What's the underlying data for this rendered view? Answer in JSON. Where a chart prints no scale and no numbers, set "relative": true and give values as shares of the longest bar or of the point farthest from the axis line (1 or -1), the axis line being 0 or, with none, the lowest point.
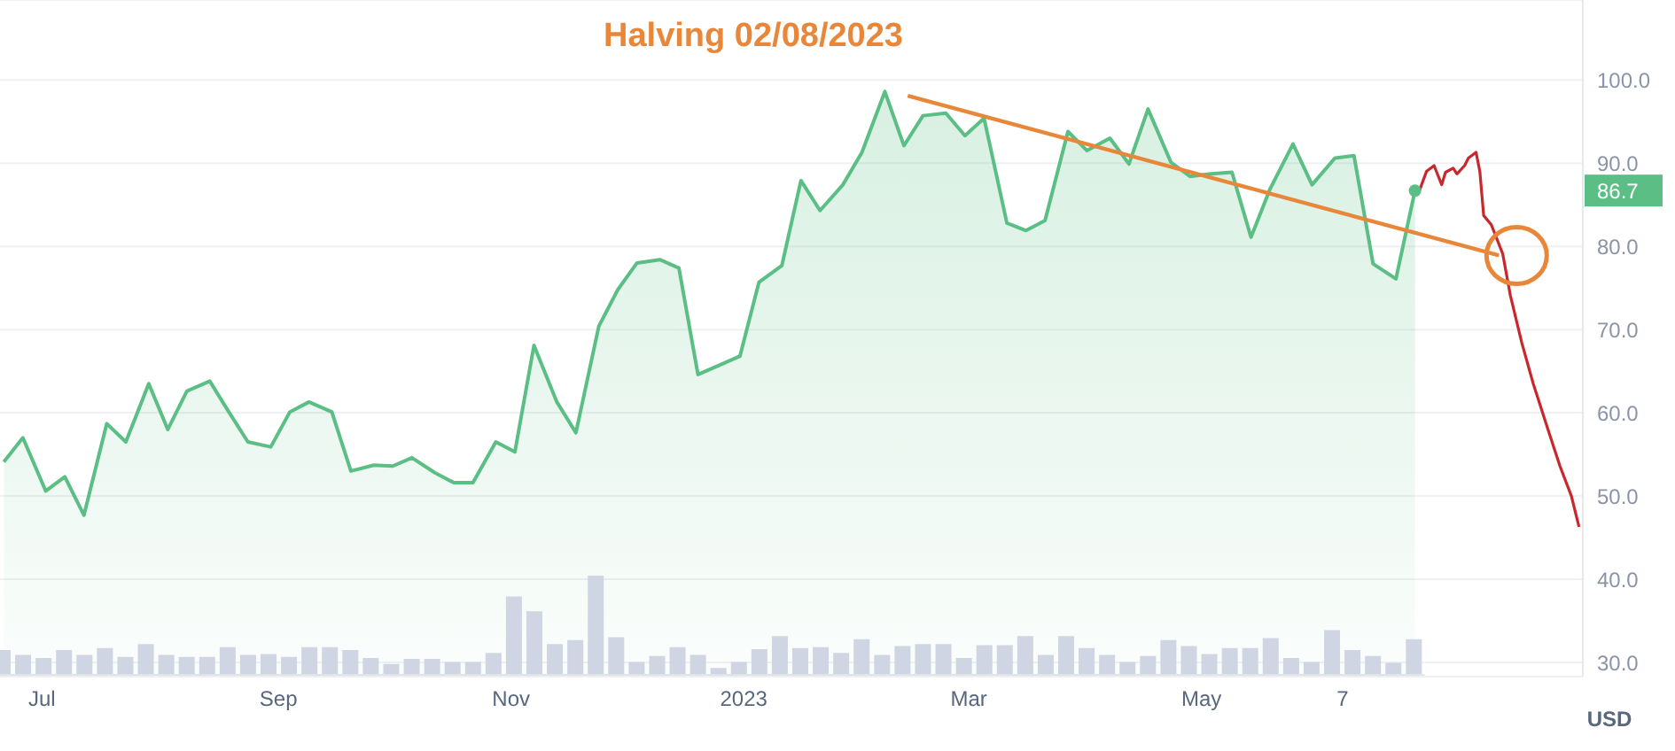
{
  "chart_data": [
    {
      "type": "area",
      "title": "Halving 02/08/2023",
      "ylabel": "USD",
      "annotations": [
        "86.7"
      ],
      "xlim": [
        "2022-06-20",
        "2023-08-09"
      ],
      "xticks": [
        {
          "value": "2022-07-01",
          "label": "Jul"
        },
        {
          "value": "2022-09-01",
          "label": "Sep"
        },
        {
          "value": "2022-11-01",
          "label": "Nov"
        },
        {
          "value": "2023-01-01",
          "label": "2023"
        },
        {
          "value": "2023-03-01",
          "label": "Mar"
        },
        {
          "value": "2023-05-01",
          "label": "May"
        },
        {
          "value": "2023-06-07",
          "label": "7"
        }
      ],
      "ylim": [
        28.3,
        109.6
      ],
      "yticks": [
        {
          "value": 30,
          "label": "30.0"
        },
        {
          "value": 40,
          "label": "40.0"
        },
        {
          "value": 50,
          "label": "50.0"
        },
        {
          "value": 60,
          "label": "60.0"
        },
        {
          "value": 70,
          "label": "70.0"
        },
        {
          "value": 80,
          "label": "80.0"
        },
        {
          "value": 90,
          "label": "90.0"
        },
        {
          "value": 100,
          "label": "100.0"
        }
      ],
      "grid": "y",
      "marker": "none",
      "line_style": "solid",
      "series": [
        {
          "type": "area",
          "color": "#5bbf85",
          "x": [
            "2022-06-21",
            "2022-06-26",
            "2022-07-02",
            "2022-07-07",
            "2022-07-12",
            "2022-07-18",
            "2022-07-23",
            "2022-07-29",
            "2022-08-03",
            "2022-08-08",
            "2022-08-14",
            "2022-08-19",
            "2022-08-24",
            "2022-08-30",
            "2022-09-04",
            "2022-09-09",
            "2022-09-15",
            "2022-09-20",
            "2022-09-26",
            "2022-10-01",
            "2022-10-06",
            "2022-10-12",
            "2022-10-17",
            "2022-10-22",
            "2022-10-28",
            "2022-11-02",
            "2022-11-07",
            "2022-11-13",
            "2022-11-18",
            "2022-11-24",
            "2022-11-29",
            "2022-12-04",
            "2022-12-10",
            "2022-12-15",
            "2022-12-20",
            "2022-12-26",
            "2022-12-31",
            "2023-01-05",
            "2023-01-11",
            "2023-01-16",
            "2023-01-21",
            "2023-01-27",
            "2023-02-01",
            "2023-02-07",
            "2023-02-12",
            "2023-02-17",
            "2023-02-23",
            "2023-02-28",
            "2023-03-05",
            "2023-03-11",
            "2023-03-16",
            "2023-03-21",
            "2023-03-27",
            "2023-04-01",
            "2023-04-07",
            "2023-04-12",
            "2023-04-17",
            "2023-04-23",
            "2023-04-28",
            "2023-05-03",
            "2023-05-09",
            "2023-05-14",
            "2023-05-19",
            "2023-05-25",
            "2023-05-30",
            "2023-06-05",
            "2023-06-10",
            "2023-06-15",
            "2023-06-21",
            "2023-06-26"
          ],
          "values": [
            54.1,
            57.0,
            50.6,
            52.3,
            47.7,
            58.7,
            56.5,
            63.5,
            58.0,
            62.6,
            63.8,
            60.1,
            56.5,
            55.9,
            60.1,
            61.3,
            60.1,
            53.0,
            53.7,
            53.6,
            54.6,
            52.8,
            51.6,
            51.6,
            56.5,
            55.3,
            68.1,
            61.3,
            57.6,
            70.4,
            74.8,
            78.0,
            78.4,
            77.4,
            64.6,
            65.8,
            66.8,
            75.7,
            77.7,
            87.9,
            84.3,
            87.4,
            91.3,
            98.6,
            92.1,
            95.7,
            96.0,
            93.3,
            95.4,
            82.8,
            81.9,
            83.1,
            93.8,
            91.5,
            93.0,
            89.9,
            96.5,
            90.1,
            88.4,
            88.7,
            88.9,
            81.1,
            86.9,
            92.3,
            87.4,
            90.6,
            90.9,
            77.9,
            76.1,
            86.7
          ]
        },
        {
          "type": "line",
          "color": "#c8282d",
          "x": [
            "2023-06-27",
            "2023-06-29",
            "2023-07-01",
            "2023-07-03",
            "2023-07-04",
            "2023-07-06",
            "2023-07-07",
            "2023-07-09",
            "2023-07-10",
            "2023-07-12",
            "2023-07-13",
            "2023-07-14",
            "2023-07-16",
            "2023-07-19",
            "2023-07-21",
            "2023-07-24",
            "2023-07-27",
            "2023-07-31",
            "2023-08-03",
            "2023-08-06",
            "2023-08-08"
          ],
          "values": [
            86.5,
            89.0,
            89.7,
            87.4,
            88.9,
            89.4,
            88.7,
            89.7,
            90.6,
            91.3,
            89.0,
            83.7,
            82.6,
            79.1,
            74.1,
            68.4,
            63.5,
            57.8,
            53.6,
            50.0,
            46.3
          ]
        },
        {
          "type": "line",
          "color": "#e8873a",
          "x": [
            "2023-02-13",
            "2023-07-18"
          ],
          "values": [
            98.1,
            78.9
          ]
        }
      ]
    },
    {
      "type": "bar",
      "relative": true,
      "color": "#cfd5e2",
      "categories": [
        null,
        null,
        null,
        null,
        null,
        null,
        null,
        null,
        null,
        null,
        null,
        null,
        null,
        null,
        null,
        null,
        null,
        null,
        null,
        null,
        null,
        null,
        null,
        null,
        null,
        null,
        null,
        null,
        null,
        null,
        null,
        null,
        null,
        null,
        null,
        null,
        null,
        null,
        null,
        null,
        null,
        null,
        null,
        null,
        null,
        null,
        null,
        null,
        null,
        null,
        null,
        null,
        null,
        null,
        null,
        null,
        null,
        null,
        null,
        null,
        null,
        null,
        null,
        null,
        null,
        null,
        null,
        null,
        null,
        null
      ],
      "values": [
        0.25,
        0.2,
        0.17,
        0.25,
        0.2,
        0.27,
        0.18,
        0.31,
        0.2,
        0.18,
        0.18,
        0.28,
        0.2,
        0.21,
        0.18,
        0.28,
        0.28,
        0.25,
        0.17,
        0.11,
        0.16,
        0.16,
        0.13,
        0.13,
        0.22,
        0.79,
        0.64,
        0.31,
        0.35,
        1,
        0.38,
        0.13,
        0.19,
        0.28,
        0.2,
        0.07,
        0.13,
        0.26,
        0.39,
        0.27,
        0.28,
        0.22,
        0.36,
        0.2,
        0.29,
        0.31,
        0.31,
        0.17,
        0.3,
        0.3,
        0.39,
        0.2,
        0.39,
        0.27,
        0.2,
        0.13,
        0.19,
        0.35,
        0.29,
        0.21,
        0.27,
        0.27,
        0.37,
        0.17,
        0.13,
        0.45,
        0.25,
        0.19,
        0.12,
        0.36
      ]
    }
  ]
}
